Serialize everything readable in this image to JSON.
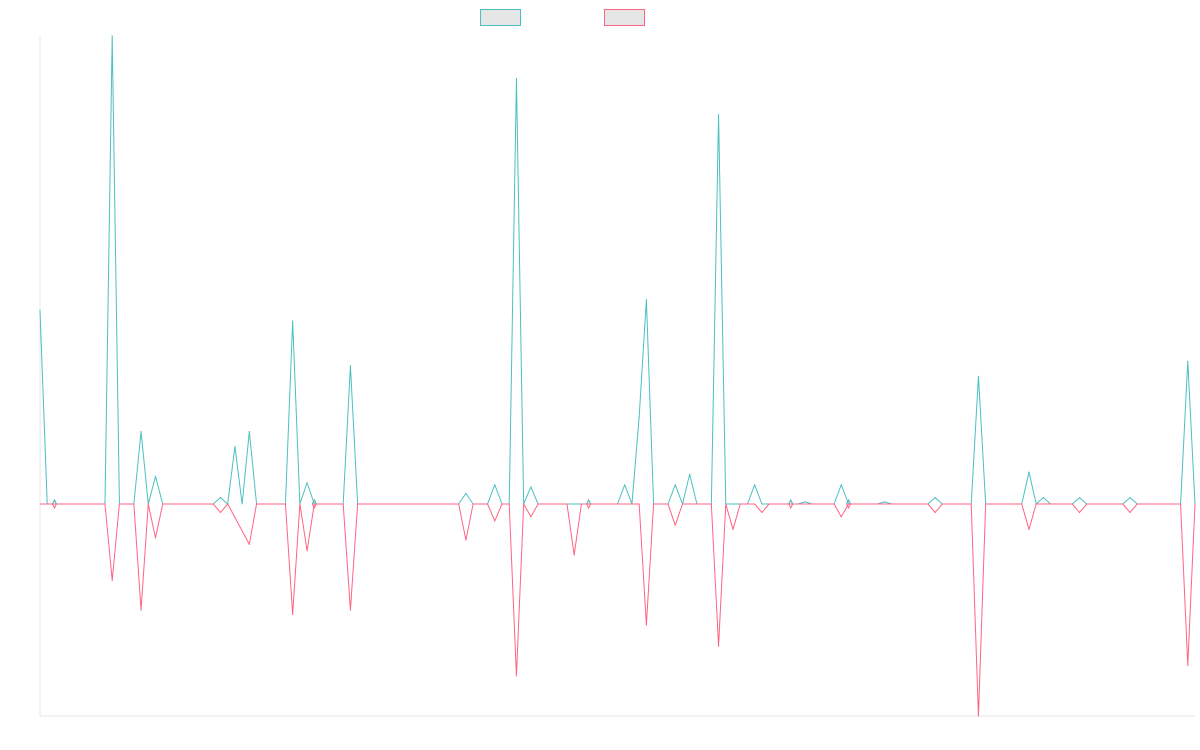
{
  "chart_data": {
    "type": "line",
    "title": "",
    "xlabel": "",
    "ylabel": "",
    "grid": false,
    "legend_position": "top-center",
    "ylim": [
      -1.0,
      2.2
    ],
    "x_count": 160,
    "series": [
      {
        "name": "",
        "color": "#4bc0c0",
        "legend_fill": "#e6e6e6",
        "points": [
          [
            0,
            0.91
          ],
          [
            1,
            0
          ],
          [
            2,
            0
          ],
          [
            9,
            0
          ],
          [
            10,
            2.2
          ],
          [
            11,
            0
          ],
          [
            13,
            0
          ],
          [
            14,
            0.34
          ],
          [
            15,
            0
          ],
          [
            16,
            0.13
          ],
          [
            17,
            0
          ],
          [
            24,
            0
          ],
          [
            25,
            0.03
          ],
          [
            26,
            0
          ],
          [
            27,
            0.27
          ],
          [
            28,
            0
          ],
          [
            29,
            0.34
          ],
          [
            30,
            0
          ],
          [
            34,
            0
          ],
          [
            35,
            0.86
          ],
          [
            36,
            0
          ],
          [
            37,
            0.1
          ],
          [
            38,
            0
          ],
          [
            42,
            0
          ],
          [
            43,
            0.65
          ],
          [
            44,
            0
          ],
          [
            58,
            0
          ],
          [
            59,
            0.05
          ],
          [
            60,
            0
          ],
          [
            62,
            0
          ],
          [
            63,
            0.09
          ],
          [
            64,
            0
          ],
          [
            65,
            0
          ],
          [
            66,
            2.0
          ],
          [
            67,
            0
          ],
          [
            68,
            0.08
          ],
          [
            69,
            0
          ],
          [
            80,
            0
          ],
          [
            81,
            0.09
          ],
          [
            82,
            0
          ],
          [
            83,
            0.41
          ],
          [
            84,
            0.96
          ],
          [
            85,
            0
          ],
          [
            87,
            0
          ],
          [
            88,
            0.09
          ],
          [
            89,
            0
          ],
          [
            90,
            0.14
          ],
          [
            91,
            0
          ],
          [
            93,
            0
          ],
          [
            94,
            1.83
          ],
          [
            95,
            0
          ],
          [
            98,
            0
          ],
          [
            99,
            0.09
          ],
          [
            100,
            0
          ],
          [
            105,
            0
          ],
          [
            106,
            0.01
          ],
          [
            107,
            0
          ],
          [
            110,
            0
          ],
          [
            111,
            0.09
          ],
          [
            112,
            0
          ],
          [
            116,
            0
          ],
          [
            117,
            0.01
          ],
          [
            118,
            0
          ],
          [
            123,
            0
          ],
          [
            124,
            0.03
          ],
          [
            125,
            0
          ],
          [
            129,
            0
          ],
          [
            130,
            0.6
          ],
          [
            131,
            0
          ],
          [
            136,
            0
          ],
          [
            137,
            0.15
          ],
          [
            138,
            0
          ],
          [
            139,
            0.03
          ],
          [
            140,
            0
          ],
          [
            143,
            0
          ],
          [
            144,
            0.03
          ],
          [
            145,
            0
          ],
          [
            150,
            0
          ],
          [
            151,
            0.03
          ],
          [
            152,
            0
          ],
          [
            158,
            0
          ],
          [
            159,
            0.67
          ],
          [
            160,
            0
          ]
        ]
      },
      {
        "name": "",
        "color": "#ff6384",
        "legend_fill": "#e6e6e6",
        "points": [
          [
            0,
            0
          ],
          [
            9,
            0
          ],
          [
            10,
            -0.36
          ],
          [
            11,
            0
          ],
          [
            13,
            0
          ],
          [
            14,
            -0.5
          ],
          [
            15,
            0
          ],
          [
            16,
            -0.16
          ],
          [
            17,
            0
          ],
          [
            24,
            0
          ],
          [
            25,
            -0.04
          ],
          [
            26,
            0
          ],
          [
            29,
            -0.19
          ],
          [
            30,
            0
          ],
          [
            34,
            0
          ],
          [
            35,
            -0.52
          ],
          [
            36,
            0
          ],
          [
            37,
            -0.22
          ],
          [
            38,
            0
          ],
          [
            42,
            0
          ],
          [
            43,
            -0.5
          ],
          [
            44,
            0
          ],
          [
            58,
            0
          ],
          [
            59,
            -0.17
          ],
          [
            60,
            0
          ],
          [
            62,
            0
          ],
          [
            63,
            -0.08
          ],
          [
            64,
            0
          ],
          [
            65,
            0
          ],
          [
            66,
            -0.81
          ],
          [
            67,
            0
          ],
          [
            68,
            -0.06
          ],
          [
            69,
            0
          ],
          [
            73,
            0
          ],
          [
            74,
            -0.24
          ],
          [
            75,
            0
          ],
          [
            83,
            0
          ],
          [
            84,
            -0.57
          ],
          [
            85,
            0
          ],
          [
            87,
            0
          ],
          [
            88,
            -0.1
          ],
          [
            89,
            0
          ],
          [
            93,
            0
          ],
          [
            94,
            -0.67
          ],
          [
            95,
            0
          ],
          [
            96,
            -0.12
          ],
          [
            97,
            0
          ],
          [
            99,
            0
          ],
          [
            100,
            -0.04
          ],
          [
            101,
            0
          ],
          [
            110,
            0
          ],
          [
            111,
            -0.06
          ],
          [
            112,
            0
          ],
          [
            123,
            0
          ],
          [
            124,
            -0.04
          ],
          [
            125,
            0
          ],
          [
            129,
            0
          ],
          [
            130,
            -1.0
          ],
          [
            131,
            0
          ],
          [
            136,
            0
          ],
          [
            137,
            -0.12
          ],
          [
            138,
            0
          ],
          [
            143,
            0
          ],
          [
            144,
            -0.04
          ],
          [
            145,
            0
          ],
          [
            150,
            0
          ],
          [
            151,
            -0.04
          ],
          [
            152,
            0
          ],
          [
            158,
            0
          ],
          [
            159,
            -0.76
          ],
          [
            160,
            0
          ]
        ]
      }
    ]
  }
}
